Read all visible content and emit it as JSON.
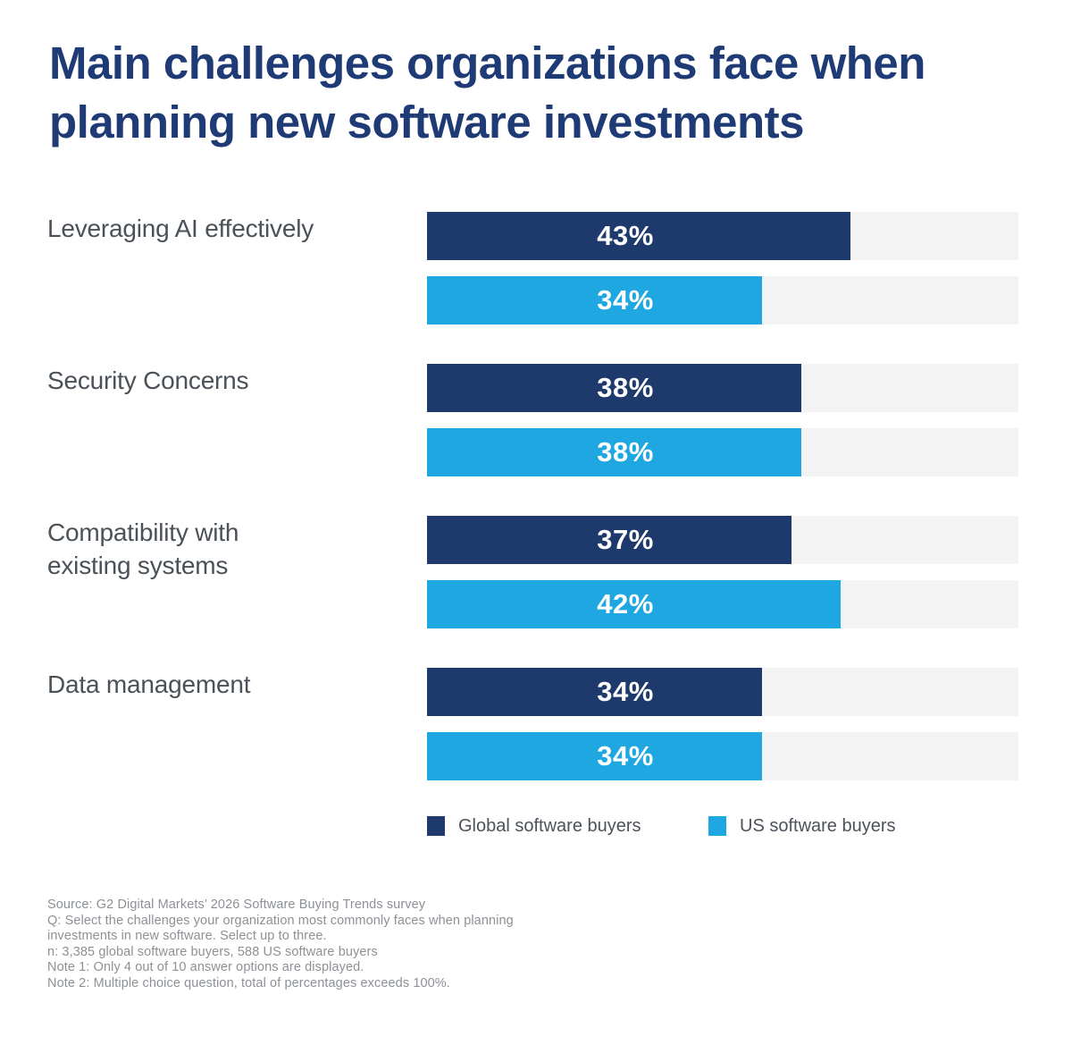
{
  "title": "Main challenges organizations face when planning new software investments",
  "chart_data": {
    "type": "bar",
    "orientation": "horizontal",
    "title": "Main challenges organizations face when planning new software investments",
    "categories": [
      "Leveraging AI effectively",
      "Security Concerns",
      "Compatibility with existing systems",
      "Data management"
    ],
    "series": [
      {
        "name": "Global software buyers",
        "color": "#1E3A6C",
        "values": [
          43,
          38,
          37,
          34
        ]
      },
      {
        "name": "US software buyers",
        "color": "#1EA7E0",
        "values": [
          34,
          38,
          42,
          34
        ]
      }
    ],
    "value_suffix": "%",
    "xlim": [
      0,
      60
    ],
    "grid": false,
    "track_color": "#F3F3F3",
    "bar_label_color": "#FFFFFF",
    "legend_position": "bottom"
  },
  "legend": {
    "items": [
      {
        "label": "Global software buyers",
        "color": "#1E3A6C"
      },
      {
        "label": "US software buyers",
        "color": "#1EA7E0"
      }
    ]
  },
  "footnotes": {
    "lines": [
      "Source: G2 Digital Markets’ 2026 Software Buying Trends survey",
      "Q: Select the challenges your organization most commonly faces when planning",
      "investments in new software. Select up to three.",
      "n: 3,385 global software buyers, 588 US software buyers",
      "Note 1: Only 4 out of 10 answer options are displayed.",
      "Note 2: Multiple choice question, total of percentages exceeds 100%."
    ]
  },
  "colors": {
    "title": "#1F3B76",
    "category_label": "#4A5158",
    "legend_text": "#4C525A",
    "footnote_text": "#8D9196",
    "background": "#FFFFFF"
  }
}
